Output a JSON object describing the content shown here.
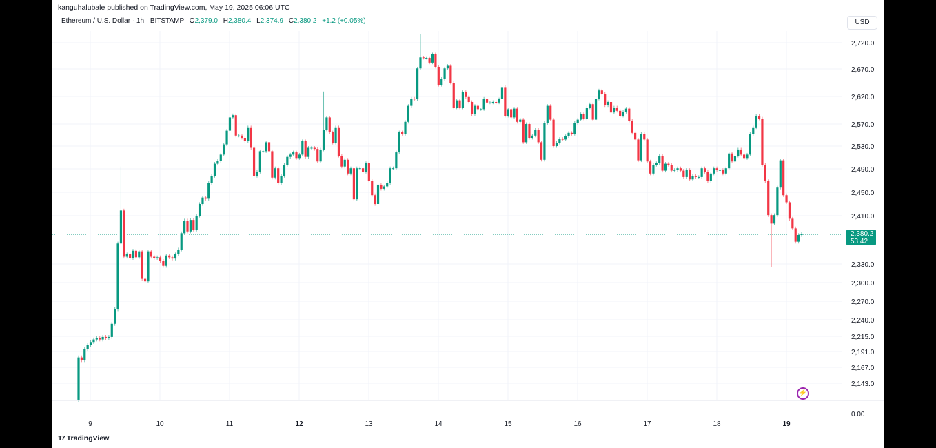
{
  "header": {
    "published": "kanguhalubale published on TradingView.com, May 19, 2025 06:06 UTC",
    "symbol": "Ethereum / U.S. Dollar · 1h · BITSTAMP",
    "o_label": "O",
    "o": "2,379.0",
    "h_label": "H",
    "h": "2,380.4",
    "l_label": "L",
    "l": "2,374.9",
    "c_label": "C",
    "c": "2,380.2",
    "change": "+1.2 (+0.05%)"
  },
  "currency": "USD",
  "last_price": "2,380.2",
  "countdown": "53:42",
  "brand": "TradingView",
  "colors": {
    "up": "#089981",
    "down": "#f23645",
    "grid": "#f0f3fa",
    "accent": "#9c27b0"
  },
  "chart_data": {
    "type": "candlestick",
    "title": "Ethereum / U.S. Dollar · 1h · BITSTAMP",
    "y_ticks": [
      "2,720.0",
      "2,670.0",
      "2,620.0",
      "2,570.0",
      "2,530.0",
      "2,490.0",
      "2,450.0",
      "2,410.0",
      "2,330.0",
      "2,300.0",
      "2,270.0",
      "2,240.0",
      "2,215.0",
      "2,191.0",
      "2,167.0",
      "2,143.0"
    ],
    "y_tick_values": [
      2720,
      2670,
      2620,
      2570,
      2530,
      2490,
      2450,
      2410,
      2330,
      2300,
      2270,
      2240,
      2215,
      2191,
      2167,
      2143
    ],
    "volume_axis_label": "0.00",
    "x_ticks": [
      {
        "label": "9",
        "bold": false
      },
      {
        "label": "10",
        "bold": false
      },
      {
        "label": "11",
        "bold": false
      },
      {
        "label": "12",
        "bold": true
      },
      {
        "label": "13",
        "bold": false
      },
      {
        "label": "14",
        "bold": false
      },
      {
        "label": "15",
        "bold": false
      },
      {
        "label": "16",
        "bold": false
      },
      {
        "label": "17",
        "bold": false
      },
      {
        "label": "18",
        "bold": false
      },
      {
        "label": "19",
        "bold": true
      }
    ],
    "first_open": 2118,
    "closes": [
      2182,
      2178,
      2195,
      2201,
      2206,
      2210,
      2212,
      2210,
      2214,
      2212,
      2214,
      2234,
      2257,
      2364,
      2419,
      2342,
      2346,
      2340,
      2352,
      2341,
      2351,
      2306,
      2302,
      2351,
      2342,
      2340,
      2341,
      2335,
      2327,
      2344,
      2341,
      2339,
      2346,
      2354,
      2381,
      2402,
      2384,
      2403,
      2387,
      2410,
      2430,
      2441,
      2439,
      2466,
      2478,
      2499,
      2504,
      2515,
      2533,
      2558,
      2582,
      2586,
      2549,
      2549,
      2545,
      2539,
      2564,
      2527,
      2478,
      2485,
      2521,
      2521,
      2537,
      2521,
      2475,
      2491,
      2466,
      2478,
      2497,
      2511,
      2515,
      2519,
      2509,
      2515,
      2539,
      2511,
      2527,
      2527,
      2525,
      2503,
      2524,
      2560,
      2582,
      2555,
      2536,
      2564,
      2513,
      2494,
      2506,
      2482,
      2491,
      2438,
      2491,
      2491,
      2485,
      2500,
      2470,
      2445,
      2430,
      2463,
      2456,
      2460,
      2466,
      2491,
      2491,
      2519,
      2555,
      2552,
      2574,
      2603,
      2616,
      2615,
      2671,
      2692,
      2691,
      2691,
      2682,
      2698,
      2674,
      2641,
      2652,
      2671,
      2676,
      2645,
      2600,
      2613,
      2600,
      2628,
      2619,
      2610,
      2588,
      2603,
      2597,
      2597,
      2616,
      2609,
      2609,
      2610,
      2609,
      2615,
      2637,
      2585,
      2597,
      2582,
      2598,
      2574,
      2578,
      2537,
      2570,
      2545,
      2549,
      2560,
      2537,
      2506,
      2572,
      2603,
      2578,
      2530,
      2536,
      2543,
      2542,
      2548,
      2554,
      2552,
      2572,
      2578,
      2588,
      2580,
      2600,
      2606,
      2578,
      2616,
      2631,
      2625,
      2604,
      2610,
      2591,
      2600,
      2594,
      2585,
      2592,
      2598,
      2576,
      2554,
      2542,
      2505,
      2552,
      2542,
      2503,
      2482,
      2497,
      2500,
      2513,
      2487,
      2499,
      2497,
      2487,
      2488,
      2491,
      2487,
      2476,
      2488,
      2472,
      2478,
      2476,
      2476,
      2491,
      2485,
      2469,
      2482,
      2491,
      2488,
      2488,
      2482,
      2491,
      2517,
      2503,
      2513,
      2524,
      2515,
      2509,
      2515,
      2552,
      2564,
      2585,
      2580,
      2497,
      2469,
      2411,
      2397,
      2411,
      2458,
      2505,
      2445,
      2433,
      2405,
      2389,
      2367,
      2378,
      2380.2
    ],
    "wick_extremes": [
      {
        "index": 14,
        "high": 2494
      },
      {
        "index": 81,
        "high": 2629
      },
      {
        "index": 113,
        "high": 2737
      },
      {
        "index": 229,
        "low": 2325
      }
    ]
  }
}
